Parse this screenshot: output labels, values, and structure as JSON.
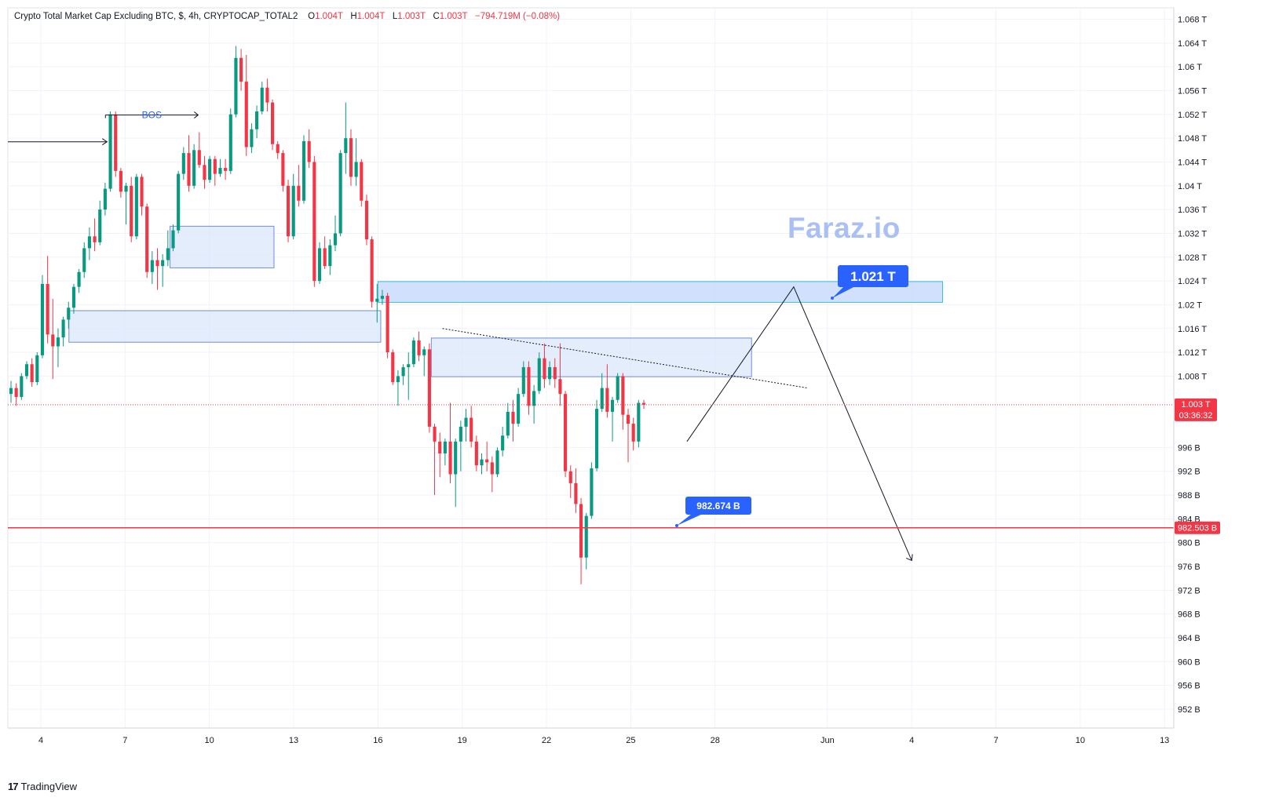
{
  "header": {
    "title": "Crypto Total Market Cap Excluding BTC, $, 4h, CRYPTOCAP_TOTAL2",
    "open_label": "O",
    "open": "1.004T",
    "high_label": "H",
    "high": "1.004T",
    "low_label": "L",
    "low": "1.003T",
    "close_label": "C",
    "close": "1.003T",
    "change": "−794.719M (−0.08%)"
  },
  "watermark": "Faraz.io",
  "branding": {
    "logo_mark": "17",
    "logo_text": "TradingView"
  },
  "colors": {
    "up": "#089981",
    "down": "#f23645",
    "grid": "#f0f3fa",
    "zone_fill": "#dbe7fb",
    "zone_stroke": "#6f8fd6",
    "zone_fill_top": "#c9dafb",
    "zone_stroke_top": "#39c0d6",
    "callout": "#2962ff",
    "level_line": "#f23645"
  },
  "chart_data": {
    "type": "candlestick",
    "symbol": "CRYPTOCAP_TOTAL2",
    "interval": "4h",
    "y_axis": {
      "ylim": [
        949000000000,
        1069000000000
      ],
      "tick_labels": [
        "1.068 T",
        "1.064 T",
        "1.06 T",
        "1.056 T",
        "1.052 T",
        "1.048 T",
        "1.044 T",
        "1.04 T",
        "1.036 T",
        "1.032 T",
        "1.028 T",
        "1.024 T",
        "1.02 T",
        "1.016 T",
        "1.012 T",
        "1.008 T",
        "996 B",
        "992 B",
        "988 B",
        "984 B",
        "980 B",
        "976 B",
        "972 B",
        "968 B",
        "964 B",
        "960 B",
        "956 B",
        "952 B"
      ],
      "tick_values": [
        1068,
        1064,
        1060,
        1056,
        1052,
        1048,
        1044,
        1040,
        1036,
        1032,
        1028,
        1024,
        1020,
        1016,
        1012,
        1008,
        996,
        992,
        988,
        984,
        980,
        976,
        972,
        968,
        964,
        960,
        956,
        952
      ]
    },
    "x_axis": {
      "tick_labels": [
        "4",
        "7",
        "10",
        "13",
        "16",
        "19",
        "22",
        "25",
        "28",
        "Jun",
        "4",
        "7",
        "10",
        "13"
      ],
      "tick_days": [
        4,
        7,
        10,
        13,
        16,
        19,
        22,
        25,
        28,
        32,
        35,
        38,
        41,
        44
      ]
    },
    "current_price": {
      "label": "1.003 T",
      "countdown": "03:36:32",
      "value": 1003.2
    },
    "support_line": {
      "label": "982.503 B",
      "value": 982.503
    },
    "callouts": [
      {
        "label": "1.021 T",
        "value": 1021
      },
      {
        "label": "982.674 B",
        "value": 982.674
      }
    ],
    "annotations": {
      "bos_label": "BOS"
    },
    "zones": [
      {
        "name": "demand-zone-1",
        "day_start": 5.0,
        "day_end": 16.1,
        "high": 1019.0,
        "low": 1013.7
      },
      {
        "name": "demand-zone-2",
        "day_start": 8.6,
        "day_end": 12.3,
        "high": 1033.2,
        "low": 1026.2
      },
      {
        "name": "supply-zone-1",
        "day_start": 17.9,
        "day_end": 29.3,
        "high": 1014.4,
        "low": 1007.9
      },
      {
        "name": "target-zone",
        "day_start": 16.0,
        "day_end": 36.1,
        "high": 1023.9,
        "low": 1020.4
      }
    ],
    "projection_path": [
      [
        27.0,
        997.0
      ],
      [
        30.8,
        1023.0
      ],
      [
        35.0,
        977.0
      ]
    ],
    "trendline": [
      [
        18.3,
        1016.0
      ],
      [
        31.3,
        1006.0
      ]
    ],
    "bos_line": {
      "day_start": 6.3,
      "day_end": 9.6,
      "value": 1051.9
    },
    "prior_high_line": {
      "day_start": 3.0,
      "day_end": 6.3,
      "value": 1047.4
    },
    "candles": [
      [
        1005.0,
        1007.2,
        1003.5,
        1006.0
      ],
      [
        1006.0,
        1006.8,
        1003.0,
        1004.5
      ],
      [
        1004.5,
        1008.5,
        1004.0,
        1008.0
      ],
      [
        1008.0,
        1010.5,
        1007.5,
        1010.0
      ],
      [
        1010.0,
        1011.0,
        1006.2,
        1007.0
      ],
      [
        1007.0,
        1012.0,
        1006.5,
        1011.5
      ],
      [
        1011.5,
        1025.0,
        1011.0,
        1023.5
      ],
      [
        1023.5,
        1028.2,
        1013.5,
        1015.0
      ],
      [
        1015.0,
        1021.0,
        1007.5,
        1013.0
      ],
      [
        1013.0,
        1016.0,
        1009.5,
        1014.5
      ],
      [
        1014.5,
        1018.0,
        1013.0,
        1017.5
      ],
      [
        1017.5,
        1020.5,
        1016.0,
        1019.5
      ],
      [
        1019.5,
        1023.5,
        1018.5,
        1023.0
      ],
      [
        1023.0,
        1026.0,
        1022.0,
        1025.5
      ],
      [
        1025.5,
        1030.5,
        1024.5,
        1029.5
      ],
      [
        1029.5,
        1033.0,
        1027.5,
        1031.5
      ],
      [
        1031.5,
        1034.5,
        1029.0,
        1030.5
      ],
      [
        1030.5,
        1037.5,
        1030.0,
        1036.0
      ],
      [
        1036.0,
        1040.5,
        1035.0,
        1039.5
      ],
      [
        1039.5,
        1052.5,
        1039.0,
        1052.0
      ],
      [
        1052.0,
        1052.5,
        1041.5,
        1042.5
      ],
      [
        1042.5,
        1043.0,
        1038.0,
        1039.0
      ],
      [
        1039.0,
        1040.5,
        1033.5,
        1040.0
      ],
      [
        1040.0,
        1041.5,
        1030.5,
        1031.5
      ],
      [
        1031.5,
        1042.0,
        1031.0,
        1041.5
      ],
      [
        1041.5,
        1042.0,
        1035.0,
        1036.5
      ],
      [
        1036.5,
        1037.0,
        1024.5,
        1025.5
      ],
      [
        1025.5,
        1029.0,
        1023.5,
        1027.5
      ],
      [
        1027.5,
        1029.5,
        1022.5,
        1026.5
      ],
      [
        1026.5,
        1028.5,
        1023.0,
        1027.5
      ],
      [
        1027.5,
        1032.5,
        1026.5,
        1029.5
      ],
      [
        1029.5,
        1033.5,
        1029.0,
        1032.5
      ],
      [
        1032.5,
        1042.5,
        1032.0,
        1042.0
      ],
      [
        1042.0,
        1046.5,
        1041.0,
        1045.5
      ],
      [
        1045.5,
        1048.5,
        1039.0,
        1040.0
      ],
      [
        1040.0,
        1047.0,
        1039.5,
        1046.0
      ],
      [
        1046.0,
        1049.0,
        1043.0,
        1043.5
      ],
      [
        1043.5,
        1045.0,
        1039.5,
        1041.0
      ],
      [
        1041.0,
        1045.0,
        1040.5,
        1044.5
      ],
      [
        1044.5,
        1045.0,
        1040.0,
        1042.0
      ],
      [
        1042.0,
        1044.5,
        1041.5,
        1043.0
      ],
      [
        1043.0,
        1044.5,
        1041.0,
        1042.5
      ],
      [
        1042.5,
        1053.0,
        1042.0,
        1052.0
      ],
      [
        1052.0,
        1063.5,
        1051.5,
        1061.5
      ],
      [
        1061.5,
        1063.0,
        1056.0,
        1057.5
      ],
      [
        1057.5,
        1062.0,
        1045.0,
        1046.5
      ],
      [
        1046.5,
        1050.5,
        1045.5,
        1049.5
      ],
      [
        1049.5,
        1053.5,
        1048.0,
        1052.5
      ],
      [
        1052.5,
        1057.5,
        1052.0,
        1056.5
      ],
      [
        1056.5,
        1058.0,
        1052.5,
        1054.0
      ],
      [
        1054.0,
        1054.5,
        1046.0,
        1047.0
      ],
      [
        1047.0,
        1047.5,
        1044.5,
        1045.5
      ],
      [
        1045.5,
        1046.0,
        1039.0,
        1040.0
      ],
      [
        1040.0,
        1041.0,
        1030.5,
        1031.5
      ],
      [
        1031.5,
        1042.0,
        1031.0,
        1040.0
      ],
      [
        1040.0,
        1043.5,
        1036.5,
        1037.5
      ],
      [
        1037.5,
        1048.5,
        1037.0,
        1047.5
      ],
      [
        1047.5,
        1049.5,
        1043.0,
        1044.0
      ],
      [
        1044.0,
        1045.0,
        1023.0,
        1024.0
      ],
      [
        1024.0,
        1030.5,
        1023.5,
        1029.5
      ],
      [
        1029.5,
        1031.5,
        1026.0,
        1026.5
      ],
      [
        1026.5,
        1031.0,
        1025.0,
        1030.0
      ],
      [
        1030.0,
        1035.0,
        1029.0,
        1032.0
      ],
      [
        1032.0,
        1046.0,
        1031.5,
        1045.5
      ],
      [
        1045.5,
        1054.0,
        1042.0,
        1048.0
      ],
      [
        1048.0,
        1049.5,
        1040.0,
        1041.5
      ],
      [
        1041.5,
        1048.0,
        1040.0,
        1044.0
      ],
      [
        1044.0,
        1044.5,
        1036.5,
        1037.5
      ],
      [
        1037.5,
        1038.5,
        1030.0,
        1031.0
      ],
      [
        1031.0,
        1031.5,
        1019.5,
        1020.5
      ],
      [
        1020.5,
        1023.5,
        1017.0,
        1021.0
      ],
      [
        1021.0,
        1022.5,
        1020.0,
        1021.5
      ],
      [
        1021.5,
        1022.0,
        1011.0,
        1012.0
      ],
      [
        1012.0,
        1012.5,
        1006.5,
        1007.0
      ],
      [
        1007.0,
        1009.0,
        1003.0,
        1008.0
      ],
      [
        1008.0,
        1010.0,
        1006.5,
        1009.5
      ],
      [
        1009.5,
        1012.0,
        1004.0,
        1010.0
      ],
      [
        1010.0,
        1014.5,
        1009.5,
        1014.0
      ],
      [
        1014.0,
        1015.5,
        1010.5,
        1011.5
      ],
      [
        1011.5,
        1013.0,
        1008.0,
        1012.5
      ],
      [
        1012.5,
        1013.5,
        998.5,
        999.5
      ],
      [
        999.5,
        1000.0,
        988.0,
        997.0
      ],
      [
        997.0,
        998.5,
        991.0,
        995.0
      ],
      [
        995.0,
        997.5,
        993.0,
        997.0
      ],
      [
        997.0,
        1003.5,
        990.0,
        991.5
      ],
      [
        991.5,
        997.5,
        986.0,
        997.0
      ],
      [
        997.0,
        1000.5,
        992.0,
        999.5
      ],
      [
        999.5,
        1002.5,
        997.0,
        1001.0
      ],
      [
        1001.0,
        1003.0,
        996.0,
        997.0
      ],
      [
        997.0,
        998.0,
        992.0,
        993.0
      ],
      [
        993.0,
        995.0,
        991.5,
        994.0
      ],
      [
        994.0,
        997.0,
        992.0,
        993.5
      ],
      [
        993.5,
        994.5,
        988.5,
        991.5
      ],
      [
        991.5,
        996.0,
        991.0,
        995.5
      ],
      [
        995.5,
        999.5,
        994.5,
        998.0
      ],
      [
        998.0,
        1003.5,
        997.5,
        1002.0
      ],
      [
        1002.0,
        1004.0,
        997.0,
        1000.0
      ],
      [
        1000.0,
        1006.0,
        999.5,
        1005.0
      ],
      [
        1005.0,
        1010.5,
        1004.5,
        1009.5
      ],
      [
        1009.5,
        1010.5,
        1001.5,
        1003.0
      ],
      [
        1003.0,
        1006.5,
        1000.0,
        1005.5
      ],
      [
        1005.5,
        1012.0,
        1005.0,
        1011.0
      ],
      [
        1011.0,
        1013.5,
        1006.0,
        1007.5
      ],
      [
        1007.5,
        1010.5,
        1006.5,
        1009.5
      ],
      [
        1009.5,
        1011.0,
        1006.0,
        1007.5
      ],
      [
        1007.5,
        1013.5,
        1003.0,
        1005.0
      ],
      [
        1005.0,
        1005.5,
        991.0,
        992.0
      ],
      [
        992.0,
        993.0,
        987.5,
        990.0
      ],
      [
        990.0,
        992.5,
        985.0,
        986.5
      ],
      [
        986.5,
        987.5,
        973.0,
        977.5
      ],
      [
        977.5,
        985.0,
        975.5,
        984.5
      ],
      [
        984.5,
        993.5,
        984.0,
        992.5
      ],
      [
        992.5,
        1004.0,
        992.0,
        1002.5
      ],
      [
        1002.5,
        1008.5,
        1002.0,
        1006.0
      ],
      [
        1006.0,
        1010.0,
        1001.0,
        1002.0
      ],
      [
        1002.0,
        1004.5,
        997.0,
        1004.0
      ],
      [
        1004.0,
        1008.5,
        1003.5,
        1008.0
      ],
      [
        1008.0,
        1008.5,
        999.0,
        1001.5
      ],
      [
        1001.5,
        1002.5,
        993.5,
        1000.0
      ],
      [
        1000.0,
        1001.0,
        995.5,
        997.0
      ],
      [
        997.0,
        1004.0,
        996.0,
        1003.5
      ],
      [
        1003.5,
        1004.0,
        1002.5,
        1003.2
      ]
    ]
  }
}
